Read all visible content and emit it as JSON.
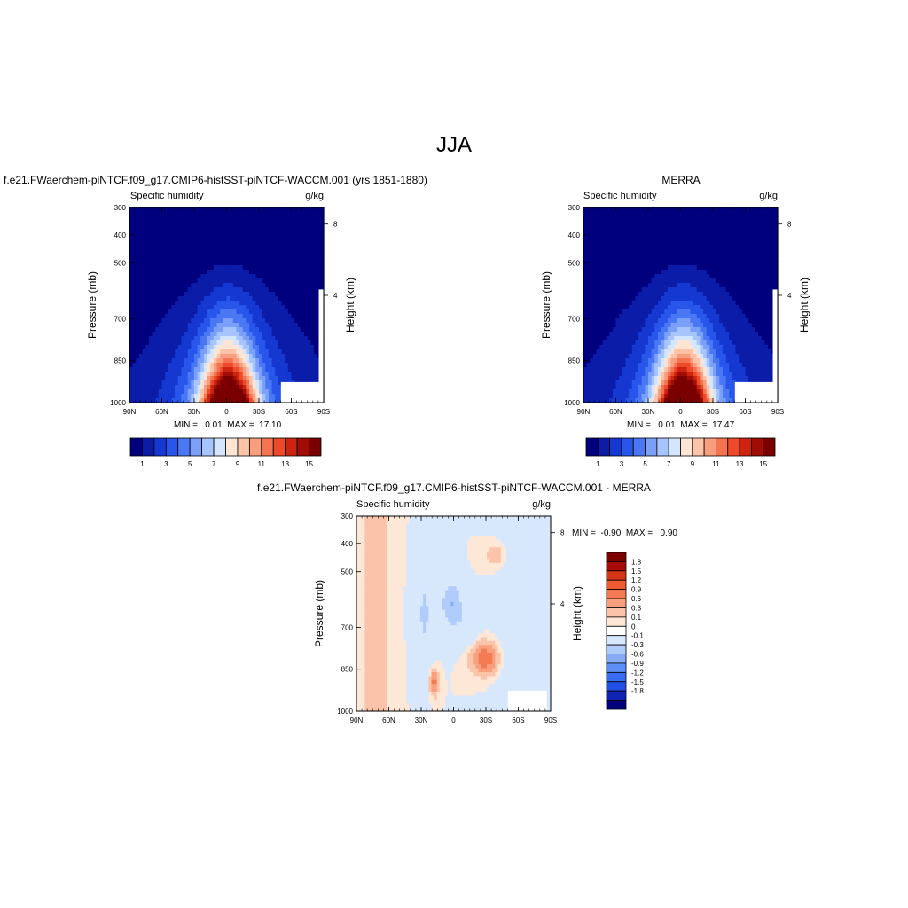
{
  "figure": {
    "title": "JJA"
  },
  "colors": {
    "full_scale": [
      "#00007f",
      "#0a1ca8",
      "#1438d0",
      "#2856ea",
      "#4a78f4",
      "#7aa0fa",
      "#a8c4fc",
      "#d4e6fe",
      "#fde5d4",
      "#fcc3a8",
      "#f89e7e",
      "#f47452",
      "#ec4a2a",
      "#cc2410",
      "#a00c06",
      "#7a0000"
    ],
    "diff_scale": [
      "#00007f",
      "#1024b4",
      "#2250e6",
      "#3a6cf2",
      "#5c8ef6",
      "#86acf8",
      "#b0ccfa",
      "#d8e8fc",
      "#ffffff",
      "#fde8d8",
      "#fbc4aa",
      "#f8a07e",
      "#f47c54",
      "#f05a30",
      "#d43418",
      "#a80c08",
      "#7a0000"
    ]
  },
  "chart_data": [
    {
      "type": "heatmap",
      "title": "f.e21.FWaerchem-piNTCF.f09_g17.CMIP6-histSST-piNTCF-WACCM.001 (yrs 1851-1880)",
      "left_label": "Specific humidity",
      "right_label": "g/kg",
      "xlabel": "",
      "ylabel": "Pressure (mb)",
      "ylabel_right": "Height (km)",
      "x_ticks": [
        "90N",
        "60N",
        "30N",
        "0",
        "30S",
        "60S",
        "90S"
      ],
      "y_ticks": [
        "300",
        "400",
        "500",
        "700",
        "850",
        "1000"
      ],
      "y2_ticks": [
        "8",
        "4"
      ],
      "ylim": [
        1000,
        300
      ],
      "min_max": "MIN =   0.01  MAX =  17.10",
      "colorbar": {
        "labels": [
          "1",
          "3",
          "5",
          "7",
          "9",
          "11",
          "13",
          "15"
        ]
      }
    },
    {
      "type": "heatmap",
      "title": "MERRA",
      "left_label": "Specific humidity",
      "right_label": "g/kg",
      "xlabel": "",
      "ylabel": "Pressure (mb)",
      "ylabel_right": "Height (km)",
      "x_ticks": [
        "90N",
        "60N",
        "30N",
        "0",
        "30S",
        "60S",
        "90S"
      ],
      "y_ticks": [
        "300",
        "400",
        "500",
        "700",
        "850",
        "1000"
      ],
      "y2_ticks": [
        "8",
        "4"
      ],
      "ylim": [
        1000,
        300
      ],
      "min_max": "MIN =   0.01  MAX =  17.47",
      "colorbar": {
        "labels": [
          "1",
          "3",
          "5",
          "7",
          "9",
          "11",
          "13",
          "15"
        ]
      }
    },
    {
      "type": "heatmap",
      "title": "f.e21.FWaerchem-piNTCF.f09_g17.CMIP6-histSST-piNTCF-WACCM.001 - MERRA",
      "left_label": "Specific humidity",
      "right_label": "g/kg",
      "xlabel": "",
      "ylabel": "Pressure (mb)",
      "ylabel_right": "Height (km)",
      "x_ticks": [
        "90N",
        "60N",
        "30N",
        "0",
        "30S",
        "60S",
        "90S"
      ],
      "y_ticks": [
        "300",
        "400",
        "500",
        "700",
        "850",
        "1000"
      ],
      "y2_ticks": [
        "8",
        "4"
      ],
      "ylim": [
        1000,
        300
      ],
      "min_max": "MIN =  -0.90  MAX =   0.90",
      "colorbar": {
        "labels": [
          "1.8",
          "1.5",
          "1.2",
          "0.9",
          "0.6",
          "0.3",
          "0.1",
          "0",
          "-0.1",
          "-0.3",
          "-0.6",
          "-0.9",
          "-1.2",
          "-1.5",
          "-1.8"
        ]
      }
    }
  ]
}
